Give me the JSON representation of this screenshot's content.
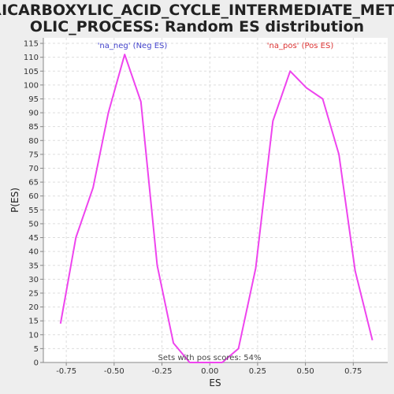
{
  "chart_data": {
    "type": "line",
    "title_line1": "TRICARBOXYLIC_ACID_CYCLE_INTERMEDIATE_METAB",
    "title_line2": "OLIC_PROCESS: Random ES distribution",
    "xlabel": "ES",
    "ylabel": "P(ES)",
    "xlim": [
      -0.87,
      0.93
    ],
    "ylim": [
      0,
      117
    ],
    "xticks": [
      -0.75,
      -0.5,
      -0.25,
      0.0,
      0.25,
      0.5,
      0.75
    ],
    "xtick_labels": [
      "-0.75",
      "-0.50",
      "-0.25",
      "0.00",
      "0.25",
      "0.50",
      "0.75"
    ],
    "yticks": [
      0,
      5,
      10,
      15,
      20,
      25,
      30,
      35,
      40,
      45,
      50,
      55,
      60,
      65,
      70,
      75,
      80,
      85,
      90,
      95,
      100,
      105,
      110,
      115
    ],
    "grid": true,
    "series": [
      {
        "color": "#ee44ee",
        "x": [
          -0.78,
          -0.7,
          -0.61,
          -0.53,
          -0.445,
          -0.36,
          -0.275,
          -0.19,
          -0.105,
          -0.02,
          0.065,
          0.15,
          0.24,
          0.33,
          0.42,
          0.505,
          0.59,
          0.675,
          0.76,
          0.85
        ],
        "y": [
          14,
          45,
          63,
          90,
          111,
          94,
          35,
          7,
          0,
          0,
          0,
          5,
          34,
          87,
          105,
          99,
          95,
          75,
          33,
          8
        ]
      }
    ],
    "annotations": {
      "neg_label": "'na_neg' (Neg ES)",
      "pos_label": "'na_pos' (Pos ES)",
      "footer": "Sets with pos scores: 54%"
    },
    "colors": {
      "line": "#ee44ee",
      "neg": "#4444cc",
      "pos": "#dd3333",
      "grid": "#dddddd",
      "plot_bg": "#ffffff",
      "page_bg": "#eeeeee"
    }
  }
}
